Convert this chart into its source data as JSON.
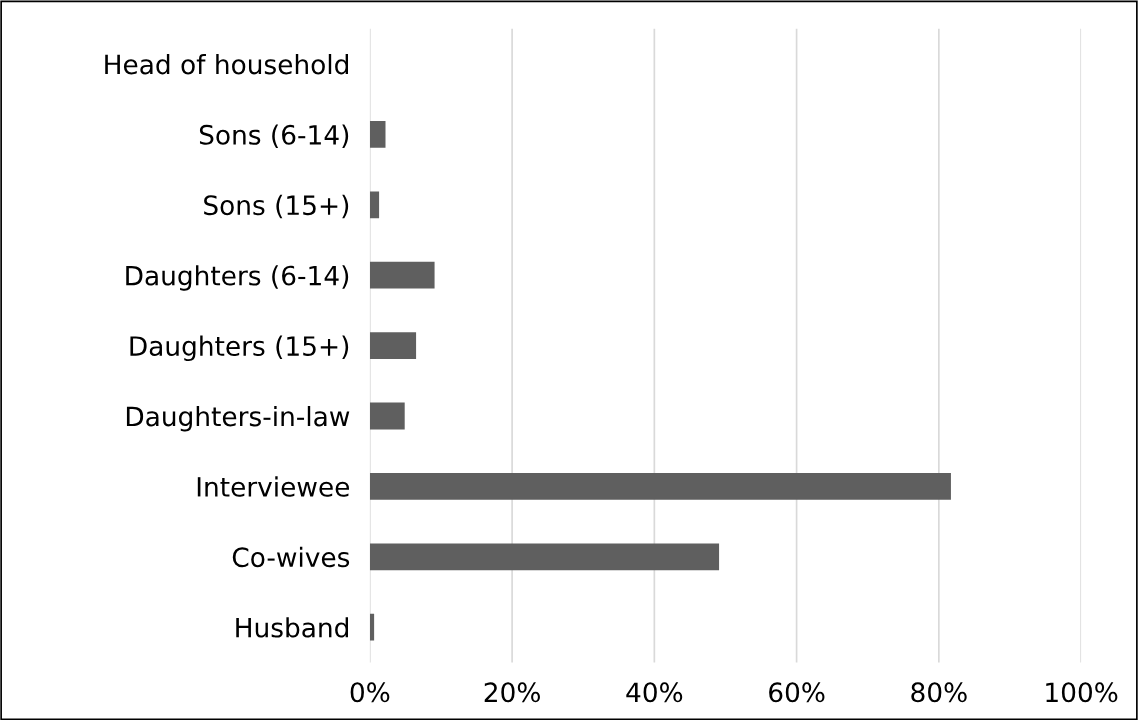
{
  "chart_data": {
    "type": "bar",
    "orientation": "horizontal",
    "categories": [
      "Head of household",
      "Sons (6-14)",
      "Sons (15+)",
      "Daughters (6-14)",
      "Daughters (15+)",
      "Daughters-in-law",
      "Interviewee",
      "Co-wives",
      "Husband"
    ],
    "values": [
      0,
      2.2,
      1.3,
      9.1,
      6.5,
      4.9,
      81.7,
      49.1,
      0.6
    ],
    "color": "#5f5f5f",
    "xlim": [
      0,
      100
    ],
    "xticks": [
      {
        "value": 0,
        "label": "0%"
      },
      {
        "value": 20,
        "label": "20%"
      },
      {
        "value": 40,
        "label": "40%"
      },
      {
        "value": 60,
        "label": "60%"
      },
      {
        "value": 80,
        "label": "80%"
      },
      {
        "value": 100,
        "label": "100%"
      }
    ],
    "grid": "x"
  }
}
